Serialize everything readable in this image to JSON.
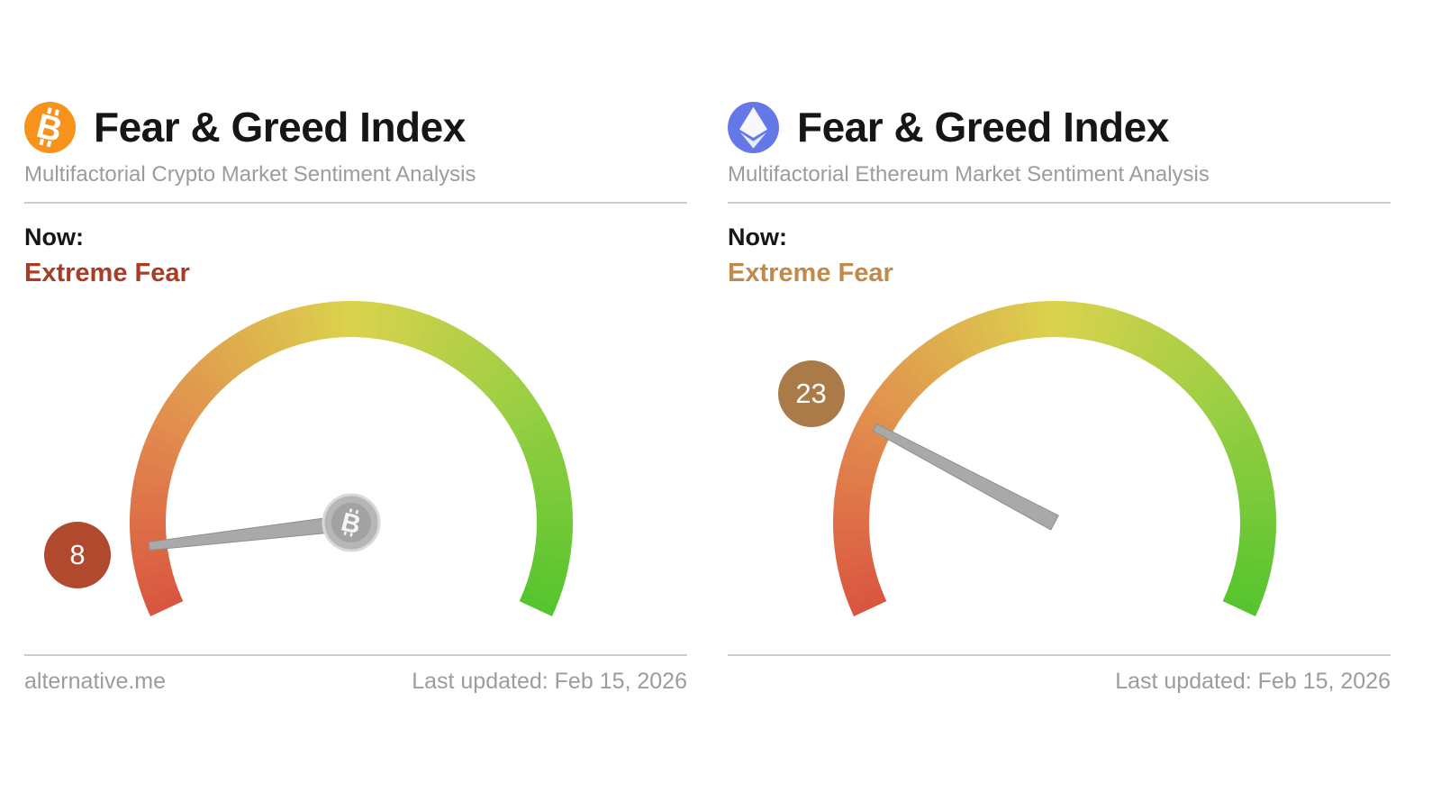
{
  "panels": [
    {
      "coin": "bitcoin",
      "icon": "bitcoin-icon",
      "icon_color": "#f7931a",
      "title": "Fear & Greed Index",
      "subtitle": "Multifactorial Crypto Market Sentiment Analysis",
      "now_label": "Now:",
      "sentiment_label": "Extreme Fear",
      "sentiment_color": "#a93c24",
      "value": 8,
      "badge_color": "#b1492f",
      "hub_icon": "bitcoin",
      "footer_left": "alternative.me",
      "footer_right": "Last updated: Feb 15, 2026"
    },
    {
      "coin": "ethereum",
      "icon": "ethereum-icon",
      "icon_color": "#6478e8",
      "title": "Fear & Greed Index",
      "subtitle": "Multifactorial Ethereum Market Sentiment Analysis",
      "now_label": "Now:",
      "sentiment_label": "Extreme Fear",
      "sentiment_color": "#c18a4b",
      "value": 23,
      "badge_color": "#aa7b48",
      "hub_icon": "",
      "footer_left": "",
      "footer_right": "Last updated: Feb 15, 2026"
    }
  ],
  "chart_data": [
    {
      "type": "gauge",
      "title": "Bitcoin Fear & Greed Index",
      "value": 8,
      "min": 0,
      "max": 100,
      "label": "Extreme Fear",
      "scale_colors": [
        {
          "t": 0,
          "color": "#d95540"
        },
        {
          "t": 0.22,
          "color": "#e28a4e"
        },
        {
          "t": 0.5,
          "color": "#dbd24d"
        },
        {
          "t": 0.75,
          "color": "#97ce43"
        },
        {
          "t": 1,
          "color": "#55c42e"
        }
      ]
    },
    {
      "type": "gauge",
      "title": "Ethereum Fear & Greed Index",
      "value": 23,
      "min": 0,
      "max": 100,
      "label": "Extreme Fear",
      "scale_colors": [
        {
          "t": 0,
          "color": "#d95540"
        },
        {
          "t": 0.22,
          "color": "#e28a4e"
        },
        {
          "t": 0.5,
          "color": "#dbd24d"
        },
        {
          "t": 0.75,
          "color": "#97ce43"
        },
        {
          "t": 1,
          "color": "#55c42e"
        }
      ]
    }
  ]
}
